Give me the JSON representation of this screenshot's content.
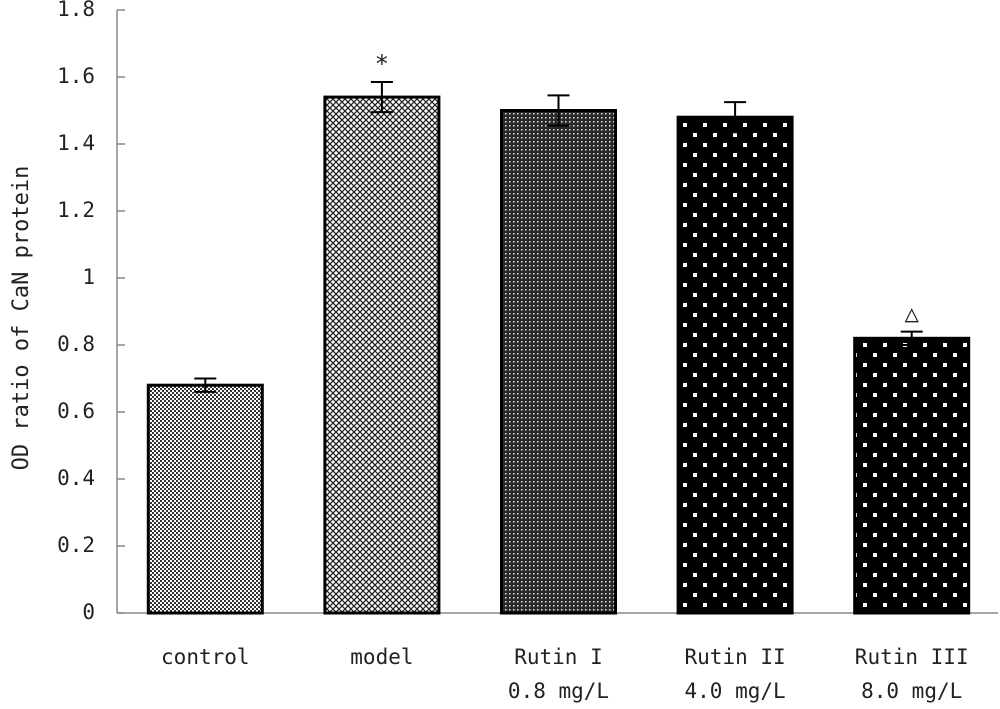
{
  "chart_data": {
    "type": "bar",
    "ylabel": "OD ratio of CaN protein",
    "xlabel": "",
    "ylim": [
      0,
      1.8
    ],
    "yticks": [
      0,
      0.2,
      0.4,
      0.6,
      0.8,
      1.0,
      1.2,
      1.4,
      1.6,
      1.8
    ],
    "ytick_labels": [
      "0",
      "0.2",
      "0.4",
      "0.6",
      "0.8",
      "1",
      "1.2",
      "1.4",
      "1.6",
      "1.8"
    ],
    "grid": false,
    "categories": [
      {
        "line1": "control",
        "line2": ""
      },
      {
        "line1": "model",
        "line2": ""
      },
      {
        "line1": "Rutin I",
        "line2": "0.8 mg/L"
      },
      {
        "line1": "Rutin II",
        "line2": "4.0 mg/L"
      },
      {
        "line1": "Rutin III",
        "line2": "8.0 mg/L"
      }
    ],
    "values": [
      0.68,
      1.54,
      1.5,
      1.48,
      0.82
    ],
    "errors": [
      0.02,
      0.045,
      0.045,
      0.045,
      0.02
    ],
    "patterns": [
      "fine-grid",
      "crosshatch",
      "fine-dots",
      "white-dots",
      "white-dots"
    ],
    "annotations": [
      "",
      "*",
      "",
      "",
      "△"
    ]
  }
}
